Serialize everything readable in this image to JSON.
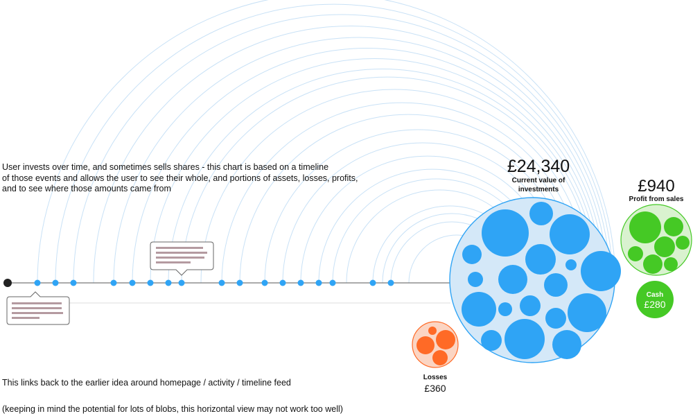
{
  "intro": {
    "line1": "User invests over time, and sometimes sells shares - this chart is based on a timeline",
    "line2": "of those events and allows the user to see their whole, and portions of assets, losses, profits,",
    "line3": "and to see where those amounts came from"
  },
  "footer": {
    "note1": "This links back to the earlier idea around homepage / activity / timeline feed",
    "note2": "(keeping in mind the potential for lots of blobs, this horizontal view may not work too well)"
  },
  "investments": {
    "amount": "£24,340",
    "label_line1": "Current value of",
    "label_line2": "investments"
  },
  "profit": {
    "amount": "£940",
    "label": "Profit from sales"
  },
  "cash": {
    "label": "Cash",
    "amount": "£280"
  },
  "losses": {
    "label": "Losses",
    "amount": "£360"
  },
  "colors": {
    "investment": "#2fa4f5",
    "investment_bg": "#d4e8f8",
    "profit": "#45c925",
    "profit_bg": "#d9f2cf",
    "loss": "#ff6a26",
    "loss_bg": "#fbd5c3",
    "arc": "#c8e1f6",
    "axis": "#777777",
    "start_dot": "#222222",
    "bubble_text": "#b49aa0"
  }
}
